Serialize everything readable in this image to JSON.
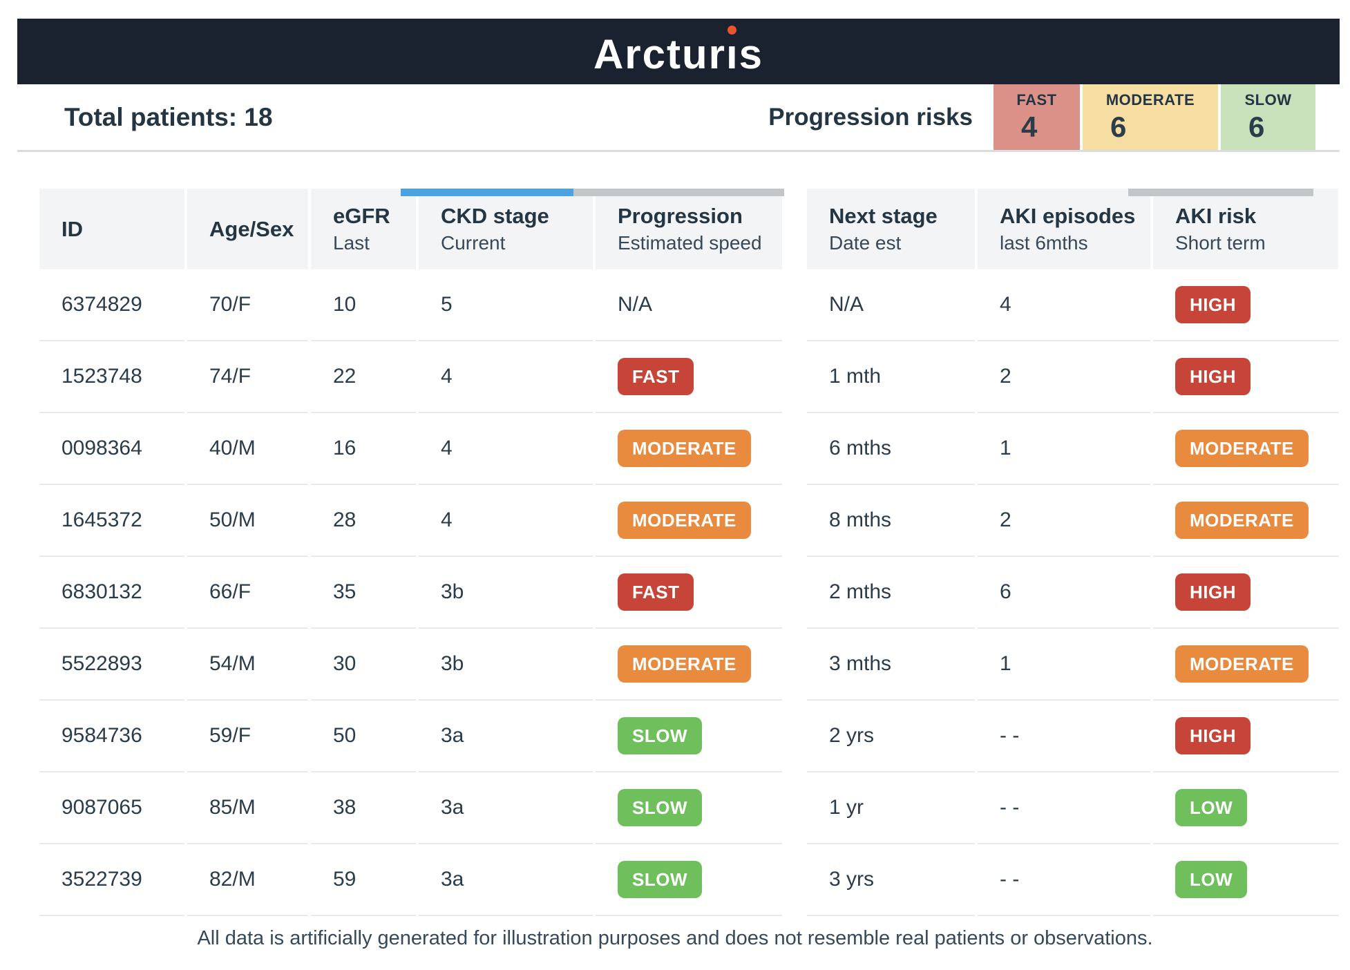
{
  "colors": {
    "header_bar": "#19222e",
    "brand_dot": "#e8542e",
    "risk_fast_bg": "#db9188",
    "risk_moderate_bg": "#f6dda1",
    "risk_slow_bg": "#c8e1ba",
    "badge_red": "#c64538",
    "badge_orange": "#e98b3e",
    "badge_green": "#70bf5d",
    "progress_blue": "#4ba3e2",
    "progress_track": "#c3c6c8",
    "text_dark": "#243543"
  },
  "brand": {
    "name": "Arcturis",
    "part1": "Arctur",
    "dotless_i": "ı",
    "part3": "s"
  },
  "summary": {
    "total_patients_label": "Total patients: 18",
    "progression_risks_label": "Progression risks",
    "risk_boxes": [
      {
        "label": "FAST",
        "value": "4",
        "bg": "#db9188"
      },
      {
        "label": "MODERATE",
        "value": "6",
        "bg": "#f6dda1"
      },
      {
        "label": "SLOW",
        "value": "6",
        "bg": "#c8e1ba"
      }
    ]
  },
  "table": {
    "header_bars": {
      "ckd_progression": {
        "fill_width": "45%"
      },
      "aki_risk": {
        "fill_width": "0%"
      }
    },
    "columns": [
      {
        "title": "ID",
        "sub": ""
      },
      {
        "title": "Age/Sex",
        "sub": ""
      },
      {
        "title": "eGFR",
        "sub": "Last"
      },
      {
        "title": "CKD stage",
        "sub": "Current"
      },
      {
        "title": "Progression",
        "sub": "Estimated speed"
      },
      {
        "title": "Next stage",
        "sub": "Date est"
      },
      {
        "title": "AKI episodes",
        "sub": "last 6mths"
      },
      {
        "title": "AKI risk",
        "sub": "Short term"
      }
    ],
    "rows": [
      {
        "id": "6374829",
        "age_sex": "70/F",
        "egfr": "10",
        "ckd_stage": "5",
        "progression": {
          "text": "N/A",
          "variant": "none"
        },
        "next_stage": "N/A",
        "aki_episodes": "4",
        "aki_risk": {
          "text": "HIGH",
          "variant": "red"
        }
      },
      {
        "id": "1523748",
        "age_sex": "74/F",
        "egfr": "22",
        "ckd_stage": "4",
        "progression": {
          "text": "FAST",
          "variant": "red"
        },
        "next_stage": "1 mth",
        "aki_episodes": "2",
        "aki_risk": {
          "text": "HIGH",
          "variant": "red"
        }
      },
      {
        "id": "0098364",
        "age_sex": "40/M",
        "egfr": "16",
        "ckd_stage": "4",
        "progression": {
          "text": "MODERATE",
          "variant": "orange"
        },
        "next_stage": "6 mths",
        "aki_episodes": "1",
        "aki_risk": {
          "text": "MODERATE",
          "variant": "orange"
        }
      },
      {
        "id": "1645372",
        "age_sex": "50/M",
        "egfr": "28",
        "ckd_stage": "4",
        "progression": {
          "text": "MODERATE",
          "variant": "orange"
        },
        "next_stage": "8 mths",
        "aki_episodes": "2",
        "aki_risk": {
          "text": "MODERATE",
          "variant": "orange"
        }
      },
      {
        "id": "6830132",
        "age_sex": "66/F",
        "egfr": "35",
        "ckd_stage": "3b",
        "progression": {
          "text": "FAST",
          "variant": "red"
        },
        "next_stage": "2 mths",
        "aki_episodes": "6",
        "aki_risk": {
          "text": "HIGH",
          "variant": "red"
        }
      },
      {
        "id": "5522893",
        "age_sex": "54/M",
        "egfr": "30",
        "ckd_stage": "3b",
        "progression": {
          "text": "MODERATE",
          "variant": "orange"
        },
        "next_stage": "3 mths",
        "aki_episodes": "1",
        "aki_risk": {
          "text": "MODERATE",
          "variant": "orange"
        }
      },
      {
        "id": "9584736",
        "age_sex": "59/F",
        "egfr": "50",
        "ckd_stage": "3a",
        "progression": {
          "text": "SLOW",
          "variant": "green"
        },
        "next_stage": "2 yrs",
        "aki_episodes": "- -",
        "aki_risk": {
          "text": "HIGH",
          "variant": "red"
        }
      },
      {
        "id": "9087065",
        "age_sex": "85/M",
        "egfr": "38",
        "ckd_stage": "3a",
        "progression": {
          "text": "SLOW",
          "variant": "green"
        },
        "next_stage": "1 yr",
        "aki_episodes": "- -",
        "aki_risk": {
          "text": "LOW",
          "variant": "green"
        }
      },
      {
        "id": "3522739",
        "age_sex": "82/M",
        "egfr": "59",
        "ckd_stage": "3a",
        "progression": {
          "text": "SLOW",
          "variant": "green"
        },
        "next_stage": "3 yrs",
        "aki_episodes": "- -",
        "aki_risk": {
          "text": "LOW",
          "variant": "green"
        }
      }
    ]
  },
  "footer": {
    "disclaimer": "All data is artificially generated for illustration purposes and does not resemble real patients or observations."
  }
}
